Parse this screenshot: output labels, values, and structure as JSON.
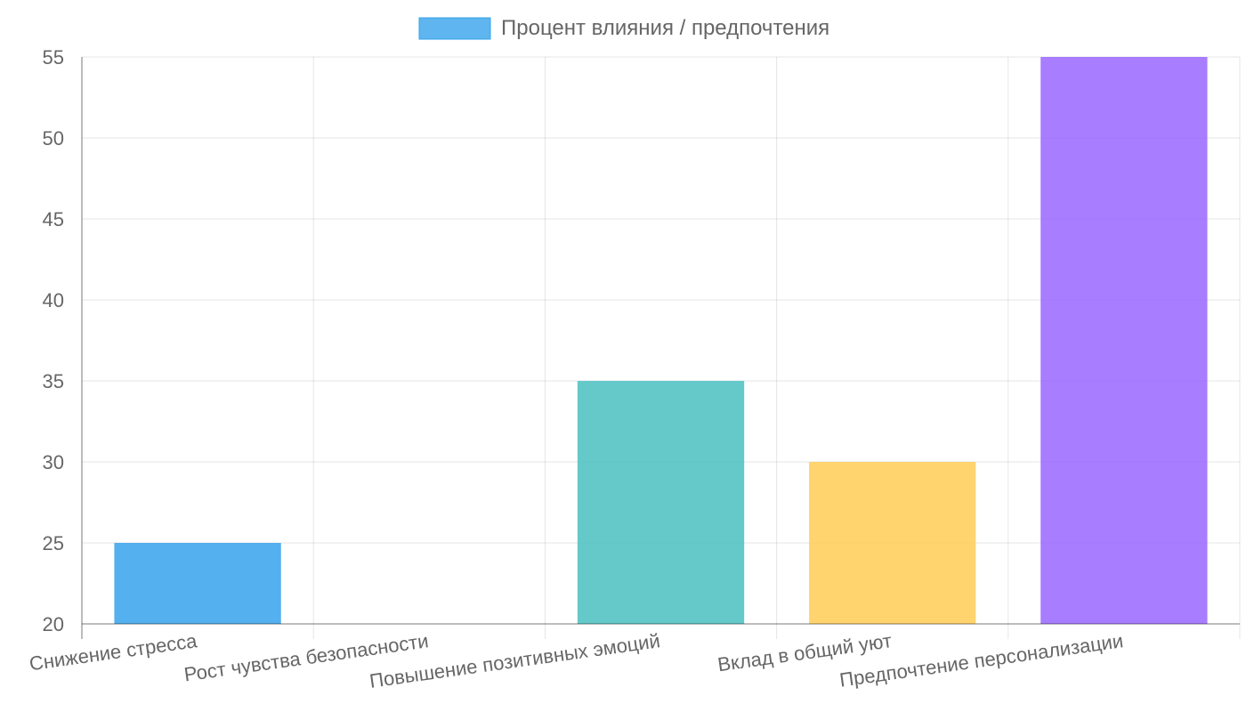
{
  "chart_data": {
    "type": "bar",
    "categories": [
      "Снижение стресса",
      "Рост чувства безопасности",
      "Повышение позитивных эмоций",
      "Вклад в общий уют",
      "Предпочтение персонализации"
    ],
    "series": [
      {
        "name": "Процент влияния / предпочтения",
        "values": [
          25,
          20,
          35,
          30,
          55
        ]
      }
    ],
    "bar_colors": [
      "#36a2eb",
      "#ff6384",
      "#4bc0c0",
      "#ffcd56",
      "#9966ff"
    ],
    "legend_color": "#36a2eb",
    "ylim": [
      20,
      55
    ],
    "yticks": [
      20,
      25,
      30,
      35,
      40,
      45,
      50,
      55
    ],
    "grid": true,
    "legend_position": "top"
  }
}
